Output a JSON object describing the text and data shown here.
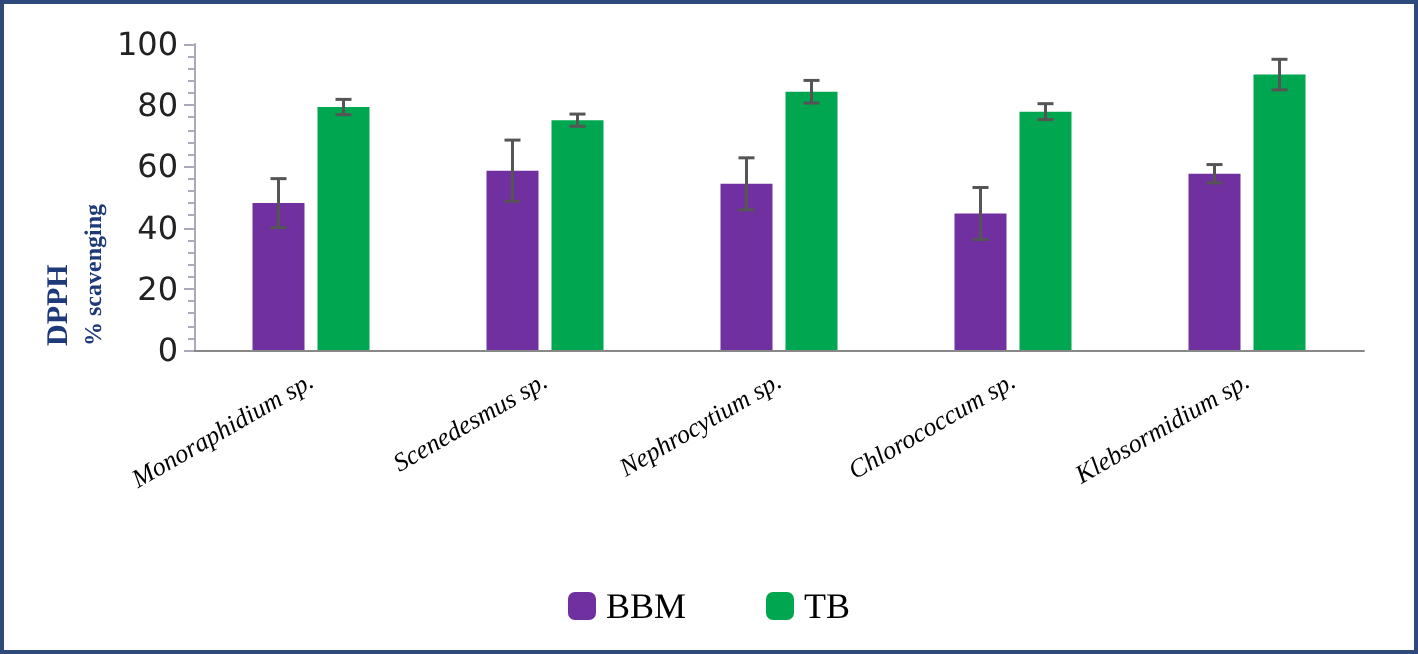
{
  "chart_data": {
    "type": "bar",
    "ylabel": "DPPH\n% scavenging",
    "categories": [
      "Monoraphidium sp.",
      "Scenedesmus sp.",
      "Nephrocytium sp.",
      "Chlorococcum sp.",
      "Klebsormidium sp."
    ],
    "series": [
      {
        "name": "BBM",
        "color": "#7030a0",
        "values": [
          48,
          58.6,
          54.3,
          44.6,
          57.6
        ],
        "errors": [
          8,
          10,
          8.5,
          8.5,
          3
        ]
      },
      {
        "name": "TB",
        "color": "#00a650",
        "values": [
          79.4,
          75.1,
          84.4,
          77.9,
          90
        ],
        "errors": [
          2.5,
          2,
          3.7,
          2.6,
          5
        ]
      }
    ],
    "ylim": [
      0,
      100
    ],
    "yticks": [
      0,
      20,
      40,
      60,
      80,
      100
    ],
    "grid": false,
    "legend": "bottom"
  }
}
